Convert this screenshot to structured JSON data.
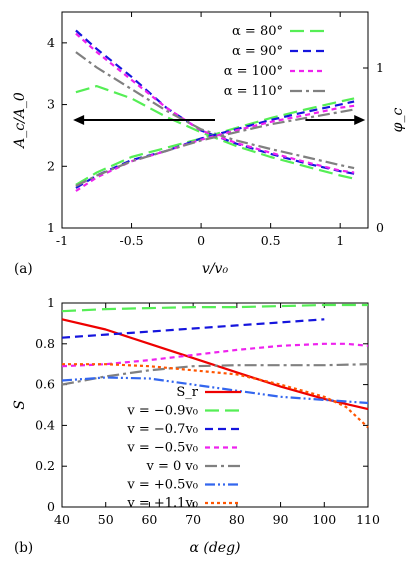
{
  "chart_data": [
    {
      "panel_label": "(a)",
      "type": "line",
      "xlabel": "v/v₀",
      "ylabel": "A_c/A_0",
      "y2label": "φ_c",
      "xlim": [
        -1,
        1.2
      ],
      "ylim": [
        1,
        4.5
      ],
      "y2lim": [
        0,
        1.35
      ],
      "xticks": [
        "-1",
        "-0.5",
        "0",
        "0.5",
        "1"
      ],
      "yticks": [
        "1",
        "2",
        "3",
        "4"
      ],
      "y2ticks": [
        "0",
        "1"
      ],
      "legend_placement": "top-right",
      "colors": {
        "green": "#55ee55",
        "blue": "#1515dd",
        "magenta": "#ee22ee",
        "gray": "#808080",
        "black": "#000000"
      },
      "series": [
        {
          "name": "α =   80°",
          "color": "#55ee55",
          "dash": "long",
          "role": "A",
          "x": [
            -0.9,
            -0.75,
            -0.5,
            -0.25,
            0,
            0.25,
            0.5,
            0.75,
            1.0,
            1.1
          ],
          "y": [
            3.2,
            3.3,
            3.1,
            2.8,
            2.55,
            2.33,
            2.15,
            2.0,
            1.85,
            1.8
          ]
        },
        {
          "name": "α =   90°",
          "color": "#1515dd",
          "dash": "medium",
          "role": "A",
          "x": [
            -0.9,
            -0.75,
            -0.5,
            -0.25,
            0,
            0.25,
            0.5,
            0.75,
            1.0,
            1.1
          ],
          "y": [
            4.2,
            3.9,
            3.45,
            2.95,
            2.58,
            2.37,
            2.2,
            2.05,
            1.92,
            1.88
          ]
        },
        {
          "name": "α = 100°",
          "color": "#ee22ee",
          "dash": "short",
          "role": "A",
          "x": [
            -0.9,
            -0.75,
            -0.5,
            -0.25,
            0,
            0.25,
            0.5,
            0.75,
            1.0,
            1.1
          ],
          "y": [
            4.15,
            3.85,
            3.4,
            2.95,
            2.58,
            2.38,
            2.22,
            2.07,
            1.93,
            1.9
          ]
        },
        {
          "name": "α = 110°",
          "color": "#808080",
          "dash": "dashdot",
          "role": "A",
          "x": [
            -0.9,
            -0.75,
            -0.5,
            -0.25,
            0,
            0.25,
            0.5,
            0.75,
            1.0,
            1.1
          ],
          "y": [
            3.85,
            3.6,
            3.25,
            2.9,
            2.6,
            2.42,
            2.28,
            2.15,
            2.02,
            1.97
          ]
        },
        {
          "color": "#55ee55",
          "dash": "long",
          "role": "phi",
          "x": [
            -0.9,
            -0.75,
            -0.5,
            -0.25,
            0,
            0.25,
            0.5,
            0.75,
            1.0,
            1.1
          ],
          "y": [
            1.7,
            1.9,
            2.15,
            2.3,
            2.45,
            2.62,
            2.78,
            2.92,
            3.05,
            3.1
          ]
        },
        {
          "color": "#1515dd",
          "dash": "medium",
          "role": "phi",
          "x": [
            -0.9,
            -0.75,
            -0.5,
            -0.25,
            0,
            0.25,
            0.5,
            0.75,
            1.0,
            1.1
          ],
          "y": [
            1.65,
            1.85,
            2.1,
            2.25,
            2.45,
            2.6,
            2.75,
            2.88,
            3.0,
            3.05
          ]
        },
        {
          "color": "#ee22ee",
          "dash": "short",
          "role": "phi",
          "x": [
            -0.9,
            -0.75,
            -0.5,
            -0.25,
            0,
            0.25,
            0.5,
            0.75,
            1.0,
            1.1
          ],
          "y": [
            1.6,
            1.82,
            2.08,
            2.25,
            2.43,
            2.58,
            2.72,
            2.83,
            2.95,
            2.98
          ]
        },
        {
          "color": "#808080",
          "dash": "dashdot",
          "role": "phi",
          "x": [
            -0.9,
            -0.75,
            -0.5,
            -0.25,
            0,
            0.25,
            0.5,
            0.75,
            1.0,
            1.1
          ],
          "y": [
            1.68,
            1.85,
            2.08,
            2.25,
            2.42,
            2.55,
            2.68,
            2.78,
            2.88,
            2.92
          ]
        }
      ],
      "arrows": [
        {
          "direction": "left",
          "x_from": 0.1,
          "x_to": -0.92,
          "y": 2.75
        },
        {
          "direction": "right",
          "x_from": 0.75,
          "x_to": 1.18,
          "y": 2.75
        }
      ]
    },
    {
      "panel_label": "(b)",
      "type": "line",
      "xlabel": "α (deg)",
      "ylabel": "S",
      "xlim": [
        40,
        110
      ],
      "ylim": [
        0,
        1
      ],
      "xticks": [
        "40",
        "50",
        "60",
        "70",
        "80",
        "90",
        "100",
        "110"
      ],
      "yticks": [
        "0",
        "0.2",
        "0.4",
        "0.6",
        "0.8",
        "1"
      ],
      "legend_placement": "bottom-left",
      "series": [
        {
          "name": "S_r",
          "color": "#ee0000",
          "dash": "solid",
          "x": [
            40,
            50,
            60,
            70,
            80,
            90,
            100,
            110
          ],
          "y": [
            0.92,
            0.87,
            0.8,
            0.73,
            0.66,
            0.59,
            0.53,
            0.48
          ]
        },
        {
          "name": "v = −0.9v₀",
          "color": "#55ee55",
          "dash": "long",
          "x": [
            40,
            50,
            60,
            70,
            80,
            90,
            100,
            110
          ],
          "y": [
            0.96,
            0.97,
            0.975,
            0.98,
            0.98,
            0.985,
            0.99,
            0.99
          ]
        },
        {
          "name": "v = −0.7v₀",
          "color": "#1515dd",
          "dash": "medium",
          "x": [
            40,
            50,
            60,
            70,
            80,
            90,
            100
          ],
          "y": [
            0.83,
            0.845,
            0.86,
            0.875,
            0.89,
            0.905,
            0.92
          ]
        },
        {
          "name": "v = −0.5v₀",
          "color": "#ee22ee",
          "dash": "short",
          "x": [
            40,
            50,
            60,
            70,
            80,
            90,
            100,
            105,
            110
          ],
          "y": [
            0.69,
            0.7,
            0.72,
            0.745,
            0.77,
            0.79,
            0.8,
            0.8,
            0.79
          ]
        },
        {
          "name": "v =    0  v₀",
          "color": "#808080",
          "dash": "dashdot",
          "x": [
            40,
            50,
            60,
            70,
            80,
            90,
            100,
            110
          ],
          "y": [
            0.6,
            0.64,
            0.67,
            0.69,
            0.695,
            0.695,
            0.695,
            0.7
          ]
        },
        {
          "name": "v = +0.5v₀",
          "color": "#3366ee",
          "dash": "dashdotdot",
          "x": [
            40,
            50,
            60,
            70,
            80,
            90,
            100,
            110
          ],
          "y": [
            0.62,
            0.635,
            0.63,
            0.6,
            0.57,
            0.54,
            0.525,
            0.51
          ]
        },
        {
          "name": "v = +1.1v₀",
          "color": "#ff5500",
          "dash": "dotted",
          "x": [
            40,
            50,
            60,
            70,
            80,
            90,
            100,
            105,
            110
          ],
          "y": [
            0.7,
            0.7,
            0.69,
            0.67,
            0.65,
            0.6,
            0.54,
            0.49,
            0.39
          ]
        }
      ]
    }
  ]
}
